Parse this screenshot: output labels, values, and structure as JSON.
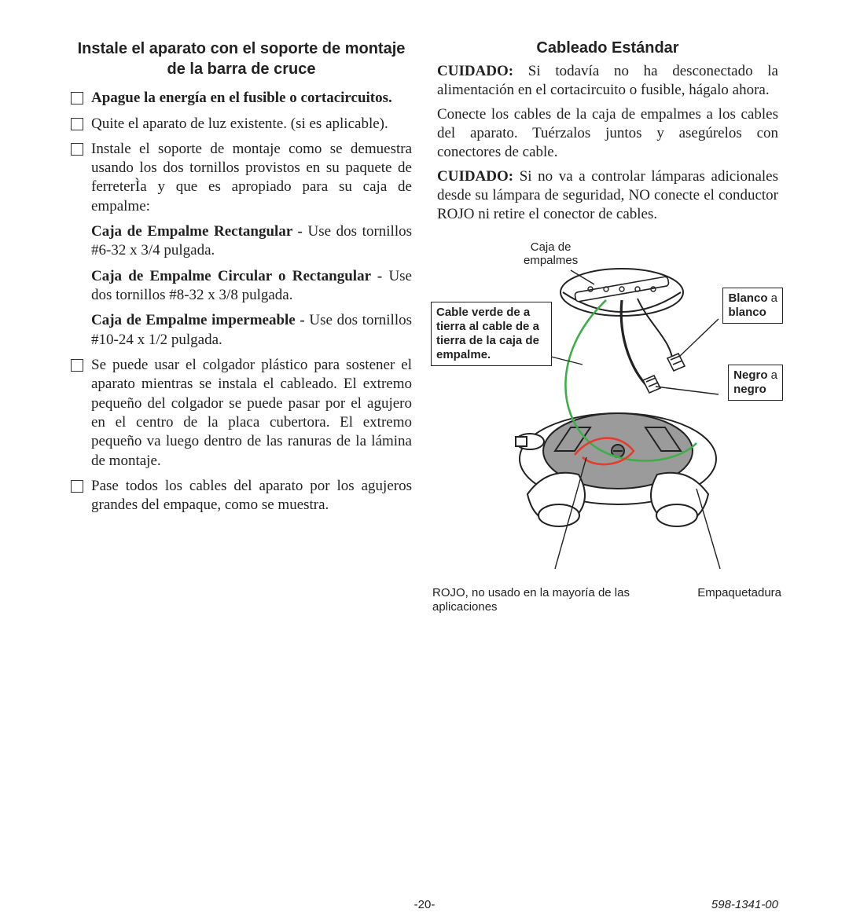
{
  "left": {
    "title": "Instale el aparato con el soporte de montaje de la barra de cruce",
    "items": [
      {
        "bold": true,
        "text": "Apague la energía en el fusible o cortacircuitos."
      },
      {
        "bold": false,
        "text": "Quite el aparato de luz existente. (si es aplicable)."
      },
      {
        "bold": false,
        "text": "Instale el soporte de montaje como se demuestra usando los dos tornillos provistos en su paquete de ferreterÌa y que es apropiado para su caja de empalme:"
      }
    ],
    "sub": [
      {
        "boldLead": "Caja de Empalme Rectangular - ",
        "rest": "Use dos tornillos #6-32 x 3/4 pulgada."
      },
      {
        "boldLead": "Caja de Empalme Circular o Rectangular - ",
        "rest": "Use dos tornillos #8-32 x 3/8 pulgada."
      },
      {
        "boldLead": "Caja de Empalme impermeable - ",
        "rest": "Use dos tornillos #10-24 x 1/2 pulgada."
      }
    ],
    "items2": [
      {
        "text": "Se puede usar el colgador plástico para sostener el aparato mientras se instala el cableado. El extremo pequeño del colgador se puede pasar por el agujero en el centro de la placa cubertora. El extremo pequeño va luego dentro de las ranuras de la lámina de montaje."
      },
      {
        "text": "Pase todos los cables del aparato por los agujeros grandes del empaque, como se muestra."
      }
    ]
  },
  "right": {
    "title": "Cableado Estándar",
    "p1_bold": "CUIDADO:",
    "p1_rest": " Si todavía no ha desconectado la alimentación en el cortacircuito o fusible, hágalo ahora.",
    "p2": "Conecte los cables de la caja de empalmes a los cables del aparato. Tuérzalos juntos y asegúrelos con conectores de cable.",
    "p3_bold": "CUIDADO:",
    "p3_rest": " Si no va a controlar lámparas adicionales desde su lámpara de seguridad, NO conecte el conductor ROJO ni retire el conector de cables.",
    "labels": {
      "jbox": "Caja de\nempalmes",
      "green": "Cable verde de a tierra al cable de a tierra de la caja de empalme.",
      "white_b": "Blanco",
      "white_a": " a",
      "white_c": "blanco",
      "black_b": "Negro",
      "black_a": " a",
      "black_c": "negro",
      "red": "ROJO, no usado en la mayoría de las aplicaciones",
      "gasket": "Empaquetadura"
    }
  },
  "footer": {
    "page": "-20-",
    "doc": "598-1341-00"
  },
  "colors": {
    "green": "#3fae4a",
    "red": "#e63b2e",
    "grayFill": "#9b9b9b",
    "black": "#1f1f1f",
    "white": "#ffffff"
  }
}
